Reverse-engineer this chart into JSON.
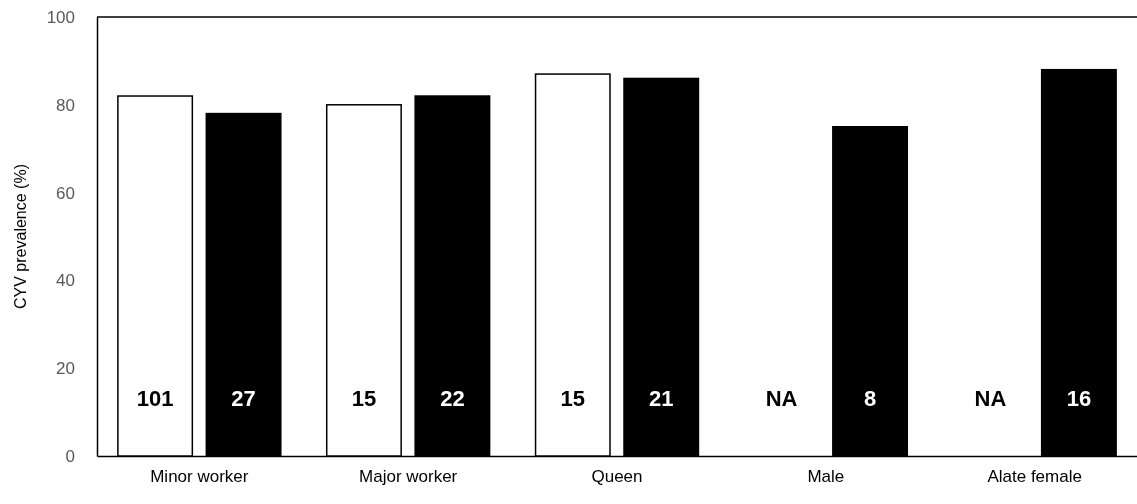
{
  "chart_data": {
    "type": "bar",
    "ylabel": "CYV  prevalence (%)",
    "categories": [
      "Minor worker",
      "Major worker",
      "Queen",
      "Male",
      "Alate female"
    ],
    "series": [
      {
        "color": "#ffffff",
        "values": [
          82,
          80,
          87,
          null,
          null
        ]
      },
      {
        "color": "#000000",
        "values": [
          78,
          82,
          86,
          75,
          88
        ]
      }
    ],
    "annotations": [
      "101",
      "27",
      "15",
      "22",
      "15",
      "21",
      "NA",
      "8",
      "NA",
      "16"
    ],
    "ylim": [
      0,
      100
    ],
    "yticks": [
      0,
      20,
      40,
      60,
      80,
      100
    ],
    "grid": false
  }
}
